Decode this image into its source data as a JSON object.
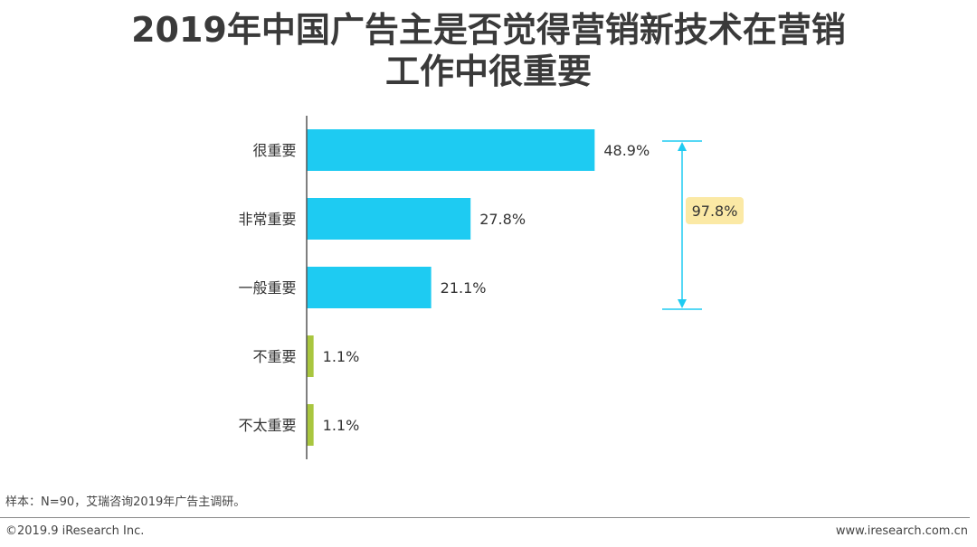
{
  "header": {
    "title_line1": "2019年中国广告主是否觉得营销新技术在营销",
    "title_line2": "工作中很重要"
  },
  "chart_data": {
    "type": "bar",
    "orientation": "horizontal",
    "title": "2019年中国广告主是否觉得营销新技术在营销工作中很重要",
    "xlabel": "",
    "ylabel": "",
    "xlim": [
      0,
      60
    ],
    "grid": false,
    "categories": [
      "很重要",
      "非常重要",
      "一般重要",
      "不重要",
      "不太重要"
    ],
    "values": [
      48.9,
      27.8,
      21.1,
      1.1,
      1.1
    ],
    "value_labels": [
      "48.9%",
      "27.8%",
      "21.1%",
      "1.1%",
      "1.1%"
    ],
    "bar_colors": [
      "#1ecbf2",
      "#1ecbf2",
      "#1ecbf2",
      "#a9c63f",
      "#a9c63f"
    ],
    "annotations": [
      {
        "type": "bracket",
        "spans_categories": [
          "很重要",
          "非常重要",
          "一般重要"
        ],
        "label": "97.8%",
        "color": "#1ecbf2",
        "label_background": "#fbe9a5"
      }
    ]
  },
  "footer": {
    "note": "样本：N=90，艾瑞咨询2019年广告主调研。",
    "copyright": "©2019.9 iResearch Inc.",
    "website": "www.iresearch.com.cn"
  }
}
